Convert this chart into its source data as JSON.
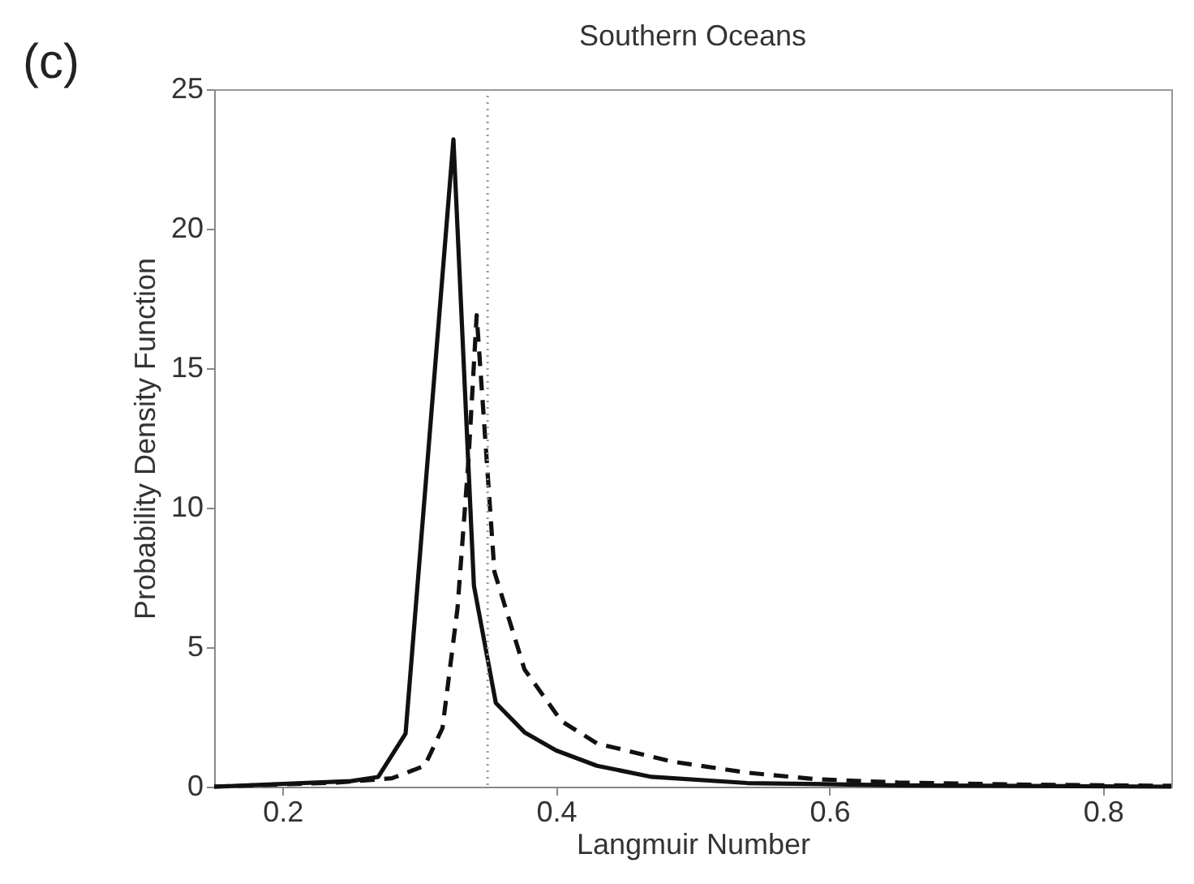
{
  "chart_data": {
    "type": "line",
    "title": "Southern Oceans",
    "xlabel": "Langmuir Number",
    "ylabel": "Probability Density Function",
    "annotations": [
      "(c)"
    ],
    "series": [
      {
        "color": "#111111",
        "line_style": "solid",
        "x": [
          0.15,
          0.25,
          0.27,
          0.29,
          0.325,
          0.34,
          0.356,
          0.377,
          0.4,
          0.43,
          0.47,
          0.54,
          0.65,
          0.85
        ],
        "values": [
          0,
          0.2,
          0.35,
          1.9,
          23.2,
          7.2,
          3.0,
          1.95,
          1.3,
          0.75,
          0.35,
          0.13,
          0.05,
          0
        ]
      },
      {
        "color": "#111111",
        "line_style": "dashed",
        "x": [
          0.15,
          0.24,
          0.28,
          0.304,
          0.317,
          0.328,
          0.336,
          0.342,
          0.355,
          0.377,
          0.404,
          0.43,
          0.485,
          0.54,
          0.59,
          0.65,
          0.75,
          0.85
        ],
        "values": [
          0,
          0.15,
          0.3,
          0.75,
          2.1,
          6.4,
          11.7,
          16.9,
          7.7,
          4.2,
          2.35,
          1.55,
          0.9,
          0.5,
          0.27,
          0.15,
          0.07,
          0.03
        ]
      }
    ],
    "ref_lines": [
      {
        "axis": "x",
        "value": 0.35,
        "color": "#999999",
        "line_style": "dotted"
      }
    ],
    "xlim": [
      0.15,
      0.85
    ],
    "xticks": [
      0.2,
      0.4,
      0.6,
      0.8
    ],
    "ylim": [
      0,
      25
    ],
    "yticks": [
      0,
      5,
      10,
      15,
      20,
      25
    ],
    "grid": false,
    "legend": false,
    "marker": "none"
  }
}
